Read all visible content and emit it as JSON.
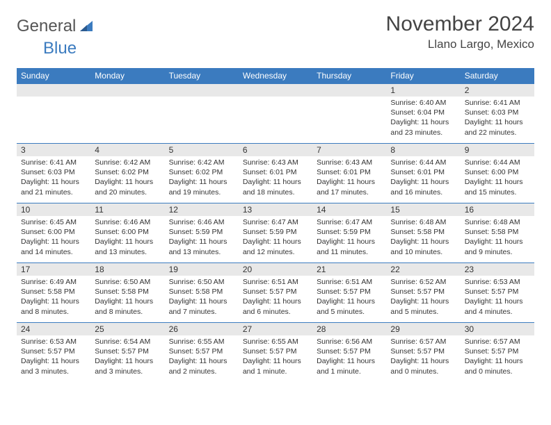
{
  "brand": {
    "part1": "General",
    "part2": "Blue"
  },
  "title": "November 2024",
  "location": "Llano Largo, Mexico",
  "colors": {
    "header_bg": "#3b7bbf",
    "header_text": "#ffffff",
    "daynum_bg": "#e8e8e8",
    "text": "#333333",
    "border": "#3b7bbf",
    "page_bg": "#ffffff"
  },
  "day_headers": [
    "Sunday",
    "Monday",
    "Tuesday",
    "Wednesday",
    "Thursday",
    "Friday",
    "Saturday"
  ],
  "weeks": [
    [
      {
        "n": "",
        "sunrise": "",
        "sunset": "",
        "daylight": ""
      },
      {
        "n": "",
        "sunrise": "",
        "sunset": "",
        "daylight": ""
      },
      {
        "n": "",
        "sunrise": "",
        "sunset": "",
        "daylight": ""
      },
      {
        "n": "",
        "sunrise": "",
        "sunset": "",
        "daylight": ""
      },
      {
        "n": "",
        "sunrise": "",
        "sunset": "",
        "daylight": ""
      },
      {
        "n": "1",
        "sunrise": "Sunrise: 6:40 AM",
        "sunset": "Sunset: 6:04 PM",
        "daylight": "Daylight: 11 hours and 23 minutes."
      },
      {
        "n": "2",
        "sunrise": "Sunrise: 6:41 AM",
        "sunset": "Sunset: 6:03 PM",
        "daylight": "Daylight: 11 hours and 22 minutes."
      }
    ],
    [
      {
        "n": "3",
        "sunrise": "Sunrise: 6:41 AM",
        "sunset": "Sunset: 6:03 PM",
        "daylight": "Daylight: 11 hours and 21 minutes."
      },
      {
        "n": "4",
        "sunrise": "Sunrise: 6:42 AM",
        "sunset": "Sunset: 6:02 PM",
        "daylight": "Daylight: 11 hours and 20 minutes."
      },
      {
        "n": "5",
        "sunrise": "Sunrise: 6:42 AM",
        "sunset": "Sunset: 6:02 PM",
        "daylight": "Daylight: 11 hours and 19 minutes."
      },
      {
        "n": "6",
        "sunrise": "Sunrise: 6:43 AM",
        "sunset": "Sunset: 6:01 PM",
        "daylight": "Daylight: 11 hours and 18 minutes."
      },
      {
        "n": "7",
        "sunrise": "Sunrise: 6:43 AM",
        "sunset": "Sunset: 6:01 PM",
        "daylight": "Daylight: 11 hours and 17 minutes."
      },
      {
        "n": "8",
        "sunrise": "Sunrise: 6:44 AM",
        "sunset": "Sunset: 6:01 PM",
        "daylight": "Daylight: 11 hours and 16 minutes."
      },
      {
        "n": "9",
        "sunrise": "Sunrise: 6:44 AM",
        "sunset": "Sunset: 6:00 PM",
        "daylight": "Daylight: 11 hours and 15 minutes."
      }
    ],
    [
      {
        "n": "10",
        "sunrise": "Sunrise: 6:45 AM",
        "sunset": "Sunset: 6:00 PM",
        "daylight": "Daylight: 11 hours and 14 minutes."
      },
      {
        "n": "11",
        "sunrise": "Sunrise: 6:46 AM",
        "sunset": "Sunset: 6:00 PM",
        "daylight": "Daylight: 11 hours and 13 minutes."
      },
      {
        "n": "12",
        "sunrise": "Sunrise: 6:46 AM",
        "sunset": "Sunset: 5:59 PM",
        "daylight": "Daylight: 11 hours and 13 minutes."
      },
      {
        "n": "13",
        "sunrise": "Sunrise: 6:47 AM",
        "sunset": "Sunset: 5:59 PM",
        "daylight": "Daylight: 11 hours and 12 minutes."
      },
      {
        "n": "14",
        "sunrise": "Sunrise: 6:47 AM",
        "sunset": "Sunset: 5:59 PM",
        "daylight": "Daylight: 11 hours and 11 minutes."
      },
      {
        "n": "15",
        "sunrise": "Sunrise: 6:48 AM",
        "sunset": "Sunset: 5:58 PM",
        "daylight": "Daylight: 11 hours and 10 minutes."
      },
      {
        "n": "16",
        "sunrise": "Sunrise: 6:48 AM",
        "sunset": "Sunset: 5:58 PM",
        "daylight": "Daylight: 11 hours and 9 minutes."
      }
    ],
    [
      {
        "n": "17",
        "sunrise": "Sunrise: 6:49 AM",
        "sunset": "Sunset: 5:58 PM",
        "daylight": "Daylight: 11 hours and 8 minutes."
      },
      {
        "n": "18",
        "sunrise": "Sunrise: 6:50 AM",
        "sunset": "Sunset: 5:58 PM",
        "daylight": "Daylight: 11 hours and 8 minutes."
      },
      {
        "n": "19",
        "sunrise": "Sunrise: 6:50 AM",
        "sunset": "Sunset: 5:58 PM",
        "daylight": "Daylight: 11 hours and 7 minutes."
      },
      {
        "n": "20",
        "sunrise": "Sunrise: 6:51 AM",
        "sunset": "Sunset: 5:57 PM",
        "daylight": "Daylight: 11 hours and 6 minutes."
      },
      {
        "n": "21",
        "sunrise": "Sunrise: 6:51 AM",
        "sunset": "Sunset: 5:57 PM",
        "daylight": "Daylight: 11 hours and 5 minutes."
      },
      {
        "n": "22",
        "sunrise": "Sunrise: 6:52 AM",
        "sunset": "Sunset: 5:57 PM",
        "daylight": "Daylight: 11 hours and 5 minutes."
      },
      {
        "n": "23",
        "sunrise": "Sunrise: 6:53 AM",
        "sunset": "Sunset: 5:57 PM",
        "daylight": "Daylight: 11 hours and 4 minutes."
      }
    ],
    [
      {
        "n": "24",
        "sunrise": "Sunrise: 6:53 AM",
        "sunset": "Sunset: 5:57 PM",
        "daylight": "Daylight: 11 hours and 3 minutes."
      },
      {
        "n": "25",
        "sunrise": "Sunrise: 6:54 AM",
        "sunset": "Sunset: 5:57 PM",
        "daylight": "Daylight: 11 hours and 3 minutes."
      },
      {
        "n": "26",
        "sunrise": "Sunrise: 6:55 AM",
        "sunset": "Sunset: 5:57 PM",
        "daylight": "Daylight: 11 hours and 2 minutes."
      },
      {
        "n": "27",
        "sunrise": "Sunrise: 6:55 AM",
        "sunset": "Sunset: 5:57 PM",
        "daylight": "Daylight: 11 hours and 1 minute."
      },
      {
        "n": "28",
        "sunrise": "Sunrise: 6:56 AM",
        "sunset": "Sunset: 5:57 PM",
        "daylight": "Daylight: 11 hours and 1 minute."
      },
      {
        "n": "29",
        "sunrise": "Sunrise: 6:57 AM",
        "sunset": "Sunset: 5:57 PM",
        "daylight": "Daylight: 11 hours and 0 minutes."
      },
      {
        "n": "30",
        "sunrise": "Sunrise: 6:57 AM",
        "sunset": "Sunset: 5:57 PM",
        "daylight": "Daylight: 11 hours and 0 minutes."
      }
    ]
  ]
}
